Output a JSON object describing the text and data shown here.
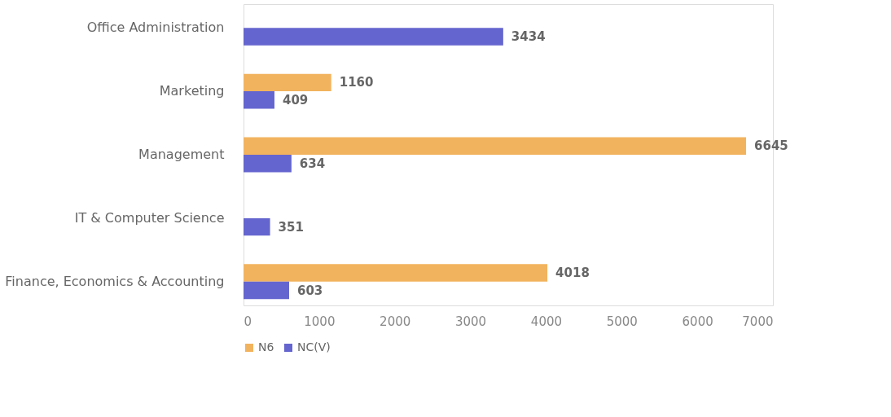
{
  "chart_data": {
    "type": "bar",
    "orientation": "horizontal",
    "categories": [
      "Office Administration",
      "Marketing",
      "Management",
      "IT & Computer Science",
      "Finance, Economics & Accounting"
    ],
    "series": [
      {
        "name": "N6",
        "color": "#f2b35e",
        "values": [
          null,
          1160,
          6645,
          null,
          4018
        ]
      },
      {
        "name": "NC(V)",
        "color": "#6565cf",
        "values": [
          3434,
          409,
          634,
          351,
          603
        ]
      }
    ],
    "xlim": [
      0,
      7000
    ],
    "xticks": [
      0,
      1000,
      2000,
      3000,
      4000,
      5000,
      6000,
      7000
    ],
    "grid": false,
    "legend": "bottom",
    "data_labels": true
  }
}
